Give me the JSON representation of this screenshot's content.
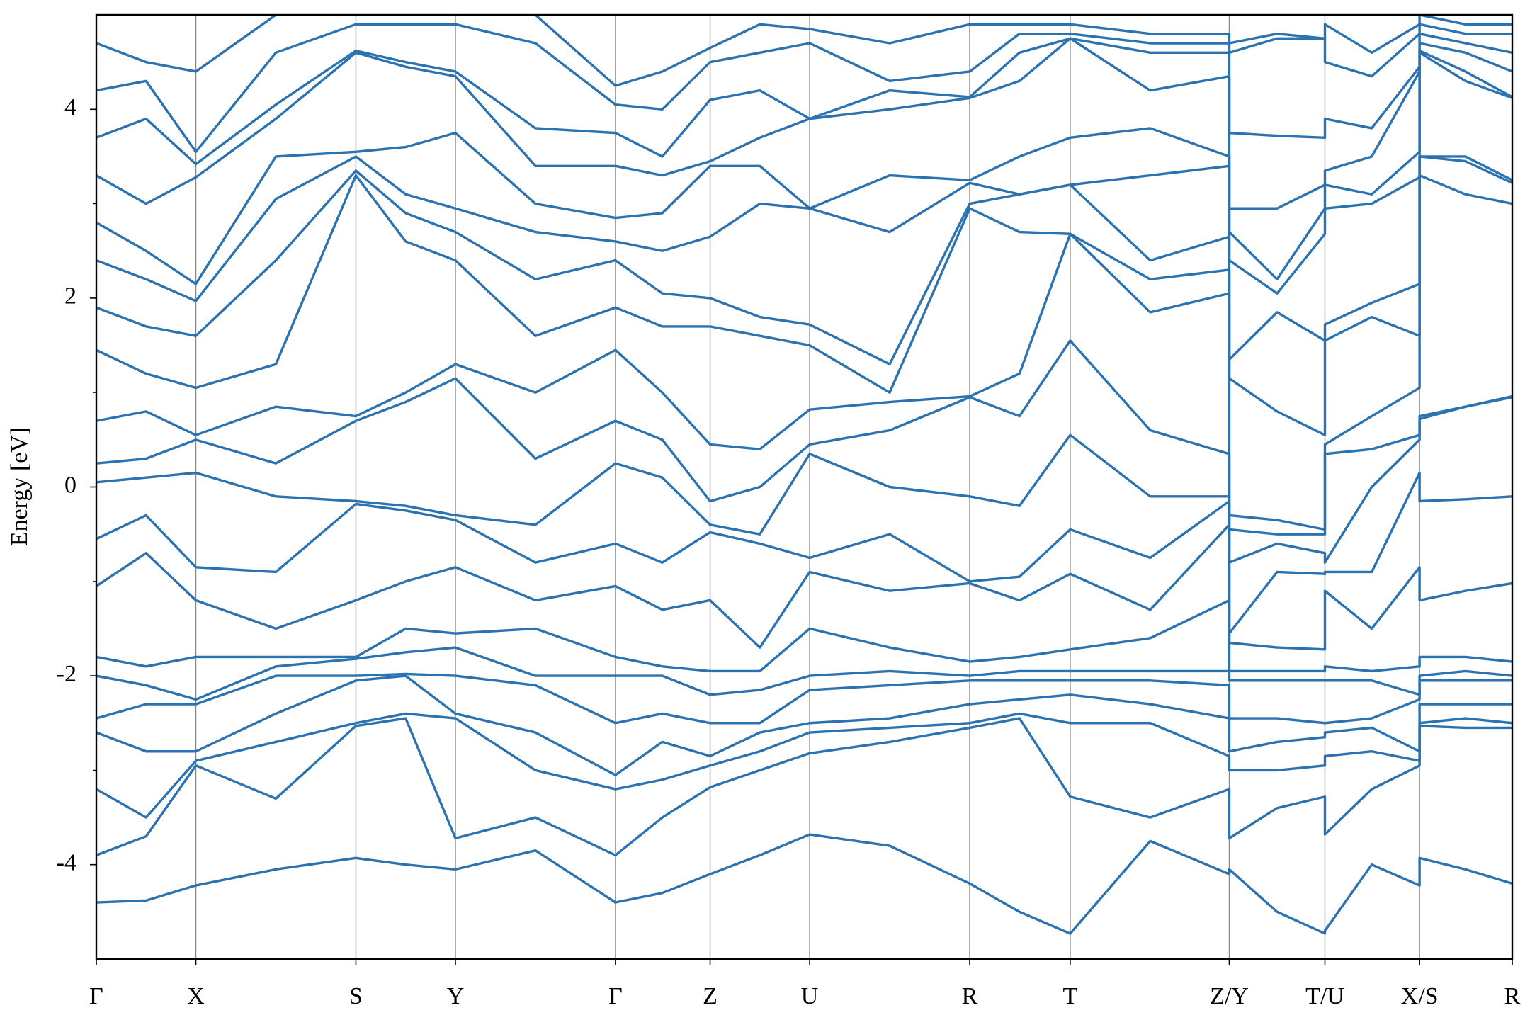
{
  "chart_data": {
    "type": "line",
    "ylabel": "Energy [eV]",
    "color": "#2b72b0",
    "grid": true,
    "xlim": [
      0,
      14.51
    ],
    "ylim": [
      -5,
      5
    ],
    "yticks": [
      -4,
      -2,
      0,
      2,
      4
    ],
    "yminorticks": [
      -3,
      -1,
      1,
      3
    ],
    "xticks": [
      {
        "value": 0,
        "label": "Γ"
      },
      {
        "value": 1.02,
        "label": "X"
      },
      {
        "value": 2.66,
        "label": "S"
      },
      {
        "value": 3.68,
        "label": "Y"
      },
      {
        "value": 5.32,
        "label": "Γ"
      },
      {
        "value": 6.29,
        "label": "Z"
      },
      {
        "value": 7.31,
        "label": "U"
      },
      {
        "value": 8.95,
        "label": "R"
      },
      {
        "value": 9.98,
        "label": "T"
      },
      {
        "value": 11.61,
        "label": "Z/Y"
      },
      {
        "value": 12.59,
        "label": "T/U"
      },
      {
        "value": 13.56,
        "label": "X/S"
      },
      {
        "value": 14.51,
        "label": "R"
      }
    ],
    "x": [
      0,
      0.51,
      1.02,
      1.84,
      2.66,
      3.17,
      3.68,
      4.5,
      5.32,
      5.8,
      6.29,
      6.8,
      7.31,
      8.13,
      8.95,
      9.46,
      9.98,
      10.8,
      11.61,
      11.61,
      12.1,
      12.59,
      12.59,
      13.07,
      13.56,
      13.56,
      14.03,
      14.51
    ],
    "series": [
      {
        "values": [
          -4.4,
          -4.38,
          -4.22,
          -4.05,
          -3.93,
          -4.0,
          -4.05,
          -3.85,
          -4.4,
          -4.3,
          -4.1,
          -3.9,
          -3.68,
          -3.8,
          -4.2,
          -4.5,
          -4.73,
          -3.75,
          -4.1,
          -4.05,
          -4.5,
          -4.73,
          -4.7,
          -4.0,
          -4.22,
          -3.93,
          -4.05,
          -4.2
        ]
      },
      {
        "values": [
          -3.9,
          -3.7,
          -2.95,
          -3.3,
          -2.53,
          -2.45,
          -3.72,
          -3.5,
          -3.9,
          -3.5,
          -3.18,
          -3.0,
          -2.82,
          -2.7,
          -2.55,
          -2.45,
          -3.28,
          -3.5,
          -3.2,
          -3.72,
          -3.4,
          -3.28,
          -3.68,
          -3.2,
          -2.95,
          -2.53,
          -2.55,
          -2.55
        ]
      },
      {
        "values": [
          -3.2,
          -3.5,
          -2.9,
          -2.7,
          -2.5,
          -2.4,
          -2.45,
          -3.0,
          -3.2,
          -3.1,
          -2.95,
          -2.8,
          -2.6,
          -2.55,
          -2.5,
          -2.4,
          -2.5,
          -2.5,
          -2.85,
          -3.0,
          -3.0,
          -2.95,
          -2.85,
          -2.8,
          -2.9,
          -2.5,
          -2.45,
          -2.5
        ]
      },
      {
        "values": [
          -2.6,
          -2.8,
          -2.8,
          -2.4,
          -2.05,
          -2.0,
          -2.4,
          -2.6,
          -3.05,
          -2.7,
          -2.85,
          -2.6,
          -2.5,
          -2.45,
          -2.3,
          -2.25,
          -2.2,
          -2.3,
          -2.45,
          -2.8,
          -2.7,
          -2.65,
          -2.6,
          -2.55,
          -2.8,
          -2.3,
          -2.3,
          -2.3
        ]
      },
      {
        "values": [
          -2.45,
          -2.3,
          -2.3,
          -2.0,
          -2.0,
          -1.98,
          -2.0,
          -2.1,
          -2.5,
          -2.4,
          -2.5,
          -2.5,
          -2.15,
          -2.1,
          -2.05,
          -2.05,
          -2.05,
          -2.05,
          -2.1,
          -2.45,
          -2.45,
          -2.5,
          -2.5,
          -2.45,
          -2.25,
          -2.05,
          -2.05,
          -2.05
        ]
      },
      {
        "values": [
          -2.0,
          -2.1,
          -2.25,
          -1.9,
          -1.82,
          -1.75,
          -1.7,
          -2.0,
          -2.0,
          -2.0,
          -2.2,
          -2.15,
          -2.0,
          -1.95,
          -2.0,
          -1.95,
          -1.95,
          -1.95,
          -1.95,
          -2.05,
          -2.05,
          -2.05,
          -2.05,
          -2.05,
          -2.2,
          -2.0,
          -1.95,
          -2.0
        ]
      },
      {
        "values": [
          -1.8,
          -1.9,
          -1.8,
          -1.8,
          -1.8,
          -1.5,
          -1.55,
          -1.5,
          -1.8,
          -1.9,
          -1.95,
          -1.95,
          -1.5,
          -1.7,
          -1.85,
          -1.8,
          -1.72,
          -1.6,
          -1.2,
          -1.95,
          -1.95,
          -1.95,
          -1.9,
          -1.95,
          -1.9,
          -1.8,
          -1.8,
          -1.85
        ]
      },
      {
        "values": [
          -1.05,
          -0.7,
          -1.2,
          -1.5,
          -1.2,
          -1.0,
          -0.85,
          -1.2,
          -1.05,
          -1.3,
          -1.2,
          -1.7,
          -0.9,
          -1.1,
          -1.02,
          -1.2,
          -0.92,
          -1.3,
          -0.4,
          -1.65,
          -1.7,
          -1.72,
          -1.1,
          -1.5,
          -0.85,
          -1.2,
          -1.1,
          -1.02
        ]
      },
      {
        "values": [
          -0.55,
          -0.3,
          -0.85,
          -0.9,
          -0.18,
          -0.25,
          -0.35,
          -0.8,
          -0.6,
          -0.8,
          -0.48,
          -0.6,
          -0.75,
          -0.5,
          -1.0,
          -0.95,
          -0.45,
          -0.75,
          -0.15,
          -1.55,
          -0.9,
          -0.92,
          -0.9,
          -0.9,
          0.15,
          -0.15,
          -0.13,
          -0.1
        ]
      },
      {
        "values": [
          0.05,
          0.1,
          0.15,
          -0.1,
          -0.15,
          -0.2,
          -0.3,
          -0.4,
          0.25,
          0.1,
          -0.4,
          -0.5,
          0.35,
          0.0,
          -0.1,
          -0.2,
          0.55,
          -0.1,
          -0.1,
          -0.8,
          -0.6,
          -0.7,
          -0.8,
          0.0,
          0.5,
          0.72,
          0.85,
          0.95
        ]
      },
      {
        "values": [
          0.25,
          0.3,
          0.5,
          0.25,
          0.7,
          0.9,
          1.15,
          0.3,
          0.7,
          0.5,
          -0.15,
          0.0,
          0.45,
          0.6,
          0.95,
          0.75,
          1.55,
          0.6,
          0.35,
          -0.45,
          -0.5,
          -0.5,
          0.35,
          0.4,
          0.55,
          0.75,
          0.85,
          0.96
        ]
      },
      {
        "values": [
          0.7,
          0.8,
          0.55,
          0.85,
          0.75,
          1.0,
          1.3,
          1.0,
          1.45,
          1.0,
          0.45,
          0.4,
          0.82,
          0.9,
          0.96,
          1.2,
          2.68,
          1.85,
          2.05,
          -0.3,
          -0.35,
          -0.45,
          0.45,
          0.75,
          1.05,
          3.3,
          3.1,
          3.0
        ]
      },
      {
        "values": [
          1.45,
          1.2,
          1.05,
          1.3,
          3.3,
          2.6,
          2.4,
          1.6,
          1.9,
          1.7,
          1.7,
          1.6,
          1.5,
          1.0,
          2.95,
          2.7,
          2.68,
          2.2,
          2.3,
          1.15,
          0.8,
          0.55,
          1.55,
          1.8,
          1.6,
          3.5,
          3.45,
          3.22
        ]
      },
      {
        "values": [
          1.9,
          1.7,
          1.6,
          2.4,
          3.35,
          2.9,
          2.7,
          2.2,
          2.4,
          2.05,
          2.0,
          1.8,
          1.72,
          1.3,
          3.0,
          3.1,
          3.2,
          2.4,
          2.65,
          1.35,
          1.85,
          1.55,
          1.72,
          1.95,
          2.15,
          3.5,
          3.5,
          3.25
        ]
      },
      {
        "values": [
          2.4,
          2.2,
          1.97,
          3.05,
          3.5,
          3.1,
          2.95,
          2.7,
          2.6,
          2.5,
          2.65,
          3.0,
          2.95,
          2.7,
          3.22,
          3.1,
          3.2,
          3.3,
          3.4,
          2.4,
          2.05,
          2.68,
          2.95,
          3.0,
          3.28,
          4.6,
          4.3,
          4.12
        ]
      },
      {
        "values": [
          2.8,
          2.5,
          2.15,
          3.5,
          3.55,
          3.6,
          3.75,
          3.0,
          2.85,
          2.9,
          3.4,
          3.4,
          2.95,
          3.3,
          3.25,
          3.5,
          3.7,
          3.8,
          3.5,
          2.7,
          2.2,
          2.95,
          3.2,
          3.1,
          3.55,
          4.62,
          4.4,
          4.13
        ]
      },
      {
        "values": [
          3.3,
          3.0,
          3.28,
          3.9,
          4.6,
          4.45,
          4.35,
          3.4,
          3.4,
          3.3,
          3.45,
          3.7,
          3.9,
          4.0,
          4.12,
          4.3,
          4.75,
          4.2,
          4.35,
          2.95,
          2.95,
          3.2,
          3.35,
          3.5,
          4.4,
          4.7,
          4.6,
          4.4
        ]
      },
      {
        "values": [
          3.7,
          3.9,
          3.42,
          4.05,
          4.62,
          4.5,
          4.4,
          3.8,
          3.75,
          3.5,
          4.1,
          4.2,
          3.9,
          4.2,
          4.13,
          4.6,
          4.75,
          4.6,
          4.6,
          3.75,
          3.72,
          3.7,
          3.9,
          3.8,
          4.45,
          4.8,
          4.7,
          4.6
        ]
      },
      {
        "values": [
          4.2,
          4.3,
          3.55,
          4.6,
          4.9,
          4.9,
          4.9,
          4.7,
          4.05,
          4.0,
          4.5,
          4.6,
          4.7,
          4.3,
          4.4,
          4.8,
          4.8,
          4.7,
          4.7,
          4.6,
          4.75,
          4.75,
          4.5,
          4.35,
          4.8,
          4.9,
          4.8,
          4.8
        ]
      },
      {
        "values": [
          4.7,
          4.5,
          4.4,
          5.0,
          5.0,
          5.0,
          5.0,
          5.0,
          4.25,
          4.4,
          4.65,
          4.9,
          4.85,
          4.7,
          4.9,
          4.9,
          4.9,
          4.8,
          4.8,
          4.7,
          4.8,
          4.75,
          4.9,
          4.6,
          4.9,
          5.0,
          4.9,
          4.9
        ]
      }
    ]
  }
}
